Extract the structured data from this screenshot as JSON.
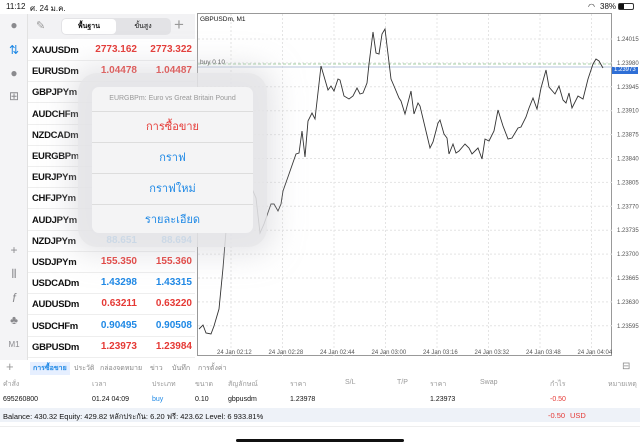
{
  "status": {
    "time": "11:12",
    "date": "ศ. 24 ม.ค.",
    "battery": "38%"
  },
  "watchlist": {
    "tabs": [
      "พื้นฐาน",
      "ขั้นสูง"
    ],
    "rows": [
      {
        "symbol": "XAUUSDm",
        "bid": "2773.162",
        "ask": "2773.322",
        "color": "red"
      },
      {
        "symbol": "EURUSDm",
        "bid": "1.04478",
        "ask": "1.04487",
        "color": "red"
      },
      {
        "symbol": "GBPJPYm",
        "bid": "",
        "ask": "",
        "color": "red"
      },
      {
        "symbol": "AUDCHFm",
        "bid": "",
        "ask": "",
        "color": "red"
      },
      {
        "symbol": "NZDCADm",
        "bid": "",
        "ask": "",
        "color": "red"
      },
      {
        "symbol": "EURGBPm",
        "bid": "",
        "ask": "",
        "color": "red"
      },
      {
        "symbol": "EURJPYm",
        "bid": "",
        "ask": "",
        "color": "red"
      },
      {
        "symbol": "CHFJPYm",
        "bid": "",
        "ask": "",
        "color": "red"
      },
      {
        "symbol": "AUDJPYm",
        "bid": "",
        "ask": "",
        "color": "red"
      },
      {
        "symbol": "NZDJPYm",
        "bid": "88.651",
        "ask": "88.694",
        "color": "blue"
      },
      {
        "symbol": "USDJPYm",
        "bid": "155.350",
        "ask": "155.360",
        "color": "red"
      },
      {
        "symbol": "USDCADm",
        "bid": "1.43298",
        "ask": "1.43315",
        "color": "blue"
      },
      {
        "symbol": "AUDUSDm",
        "bid": "0.63211",
        "ask": "0.63220",
        "color": "red"
      },
      {
        "symbol": "USDCHFm",
        "bid": "0.90495",
        "ask": "0.90508",
        "color": "blue"
      },
      {
        "symbol": "GBPUSDm",
        "bid": "1.23973",
        "ask": "1.23984",
        "color": "red"
      }
    ]
  },
  "popup": {
    "title": "EURGBPm: Euro vs Great Britain Pound",
    "items": [
      "การซื้อขาย",
      "กราฟ",
      "กราฟใหม่",
      "รายละเอียด"
    ]
  },
  "chart": {
    "title": "GBPUSDm, M1",
    "order_label": "buy 0.10",
    "current_price": "1.23973",
    "y_ticks": [
      "1.24015",
      "1.23980",
      "1.23945",
      "1.23910",
      "1.23875",
      "1.23840",
      "1.23805",
      "1.23770",
      "1.23735",
      "1.23700",
      "1.23665",
      "1.23630",
      "1.23595"
    ],
    "x_ticks": [
      "24 Jan 02:12",
      "24 Jan 02:28",
      "24 Jan 02:44",
      "24 Jan 03:00",
      "24 Jan 03:16",
      "24 Jan 03:32",
      "24 Jan 03:48",
      "24 Jan 04:04"
    ]
  },
  "bottom_tabs": [
    "การซื้อขาย",
    "ประวัติ",
    "กล่องจดหมาย",
    "ข่าว",
    "บันทึก",
    "การตั้งค่า"
  ],
  "table": {
    "headers": [
      "คำสั่ง",
      "เวลา",
      "ประเภท",
      "ขนาด",
      "สัญลักษณ์",
      "ราคา",
      "S/L",
      "T/P",
      "ราคา",
      "Swap",
      "กำไร",
      "หมายเหตุ"
    ],
    "row": [
      "695260800",
      "01.24 04:09",
      "buy",
      "0.10",
      "gbpusdm",
      "1.23978",
      "",
      "",
      "1.23973",
      "",
      "-0.50",
      ""
    ]
  },
  "balance": {
    "text": "Balance: 430.32 Equity: 429.82 หลักประกัน: 6.20 ฟรี: 423.62 Level: 6 933.81%",
    "profit": "-0.50",
    "currency": "USD"
  },
  "colors": {
    "red": "#e53935",
    "blue": "#1e88e5",
    "accent": "#2f6fd6"
  }
}
